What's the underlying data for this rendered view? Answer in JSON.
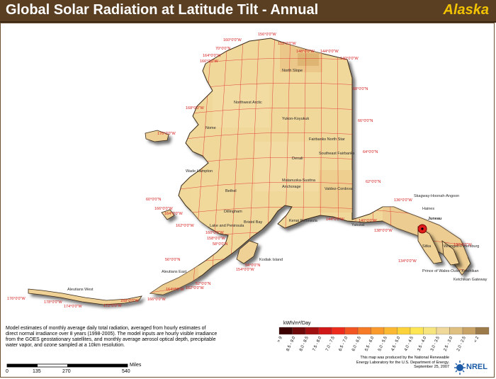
{
  "header": {
    "title": "Global Solar Radiation at Latitude Tilt - Annual",
    "region": "Alaska"
  },
  "colors": {
    "title_bg": "#5a3f22",
    "title_text": "#ffffff",
    "region_text": "#f2c300",
    "land_base": "#f0d79a",
    "grid": "#e02a2a",
    "water": "#ffffff"
  },
  "map": {
    "grid_labels": {
      "longitudes": [
        "156°0'0\"W",
        "152°0'0\"W",
        "148°0'0\"W",
        "144°0'0\"W",
        "140°0'0\"W",
        "160°0'0\"W",
        "164°0'0\"W",
        "166°0'0\"W",
        "168°0'0\"W",
        "170°0'0\"W",
        "166°0'0\"W",
        "164°0'0\"W",
        "162°0'0\"W",
        "160°0'0\"W",
        "158°0'0\"W",
        "154°0'0\"W",
        "144°0'0\"W",
        "140°0'0\"W",
        "138°0'0\"W",
        "136°0'0\"W",
        "134°0'0\"W",
        "132°0'0\"W",
        "176°0'0\"W",
        "178°0'0\"W",
        "174°0'0\"W",
        "172°0'0\"W",
        "168°0'0\"W",
        "166°0'0\"W",
        "164°0'0\"W",
        "162°0'0\"W"
      ],
      "latitudes": [
        "70°0'0\"N",
        "68°0'0\"N",
        "66°0'0\"N",
        "64°0'0\"N",
        "62°0'0\"N",
        "60°0'0\"N",
        "58°0'0\"N",
        "56°0'0\"N",
        "54°0'0\"N",
        "52°0'0\"N"
      ]
    },
    "places": [
      "North Slope",
      "Northwest Arctic",
      "Yukon-Koyukuk",
      "Nome",
      "Fairbanks North Star",
      "Southeast Fairbanks",
      "Denali",
      "Wade Hampton",
      "Bethel",
      "Matanuska-Susitna",
      "Anchorage",
      "Valdez-Cordova",
      "Dillingham",
      "Kenai Peninsula",
      "Lake and Peninsula",
      "Bristol Bay",
      "Kodiak Island",
      "Aleutians East",
      "Aleutians West",
      "Yakutat",
      "Skagway-Hoonah-Angoon",
      "Haines",
      "Juneau",
      "Wrangell-Petersburg",
      "Sitka",
      "Prince of Wales-Outer Ketchikan",
      "Ketchikan Gateway"
    ],
    "capital": "Juneau"
  },
  "legend": {
    "title": "kWh/m²/Day",
    "classes": [
      {
        "label": "> 9",
        "color": "#3d0000"
      },
      {
        "label": "8.5 - 9.0",
        "color": "#6e0a0a"
      },
      {
        "label": "8.0 - 8.5",
        "color": "#a01010"
      },
      {
        "label": "7.5 - 8.0",
        "color": "#d01818"
      },
      {
        "label": "7.0 - 7.5",
        "color": "#ee2c1e"
      },
      {
        "label": "6.5 - 7.0",
        "color": "#f35522"
      },
      {
        "label": "6.0 - 6.5",
        "color": "#f77a26"
      },
      {
        "label": "5.5 - 6.0",
        "color": "#fa9a2c"
      },
      {
        "label": "5.0 - 5.5",
        "color": "#fbb832"
      },
      {
        "label": "4.5 - 5.0",
        "color": "#fcd23a"
      },
      {
        "label": "4.0 - 4.5",
        "color": "#fde554"
      },
      {
        "label": "3.5 - 4.0",
        "color": "#f6e47f"
      },
      {
        "label": "3.0 - 3.5",
        "color": "#f0d79a"
      },
      {
        "label": "2.5 - 3.0",
        "color": "#e0c080"
      },
      {
        "label": "2.0 - 2.5",
        "color": "#c9a266"
      },
      {
        "label": "< 2",
        "color": "#9c7a4a"
      }
    ]
  },
  "scale_bar": {
    "ticks": [
      "0",
      "135",
      "270",
      "540"
    ],
    "unit": "Miles"
  },
  "description": "Model estimates of monthly average daily total radiation, averaged from hourly estimates of direct normal irradiance over 8 years (1998-2005). The model inputs are hourly visible irradiance from the GOES geostationary satellites, and monthly average aerosol optical depth, precipitable water vapor, and ozone sampled at a 10km resolution.",
  "credit": "This map was produced by the National Renewable Energy Laboratory for the U.S. Department of Energy. September 25, 2007",
  "logo": "NREL"
}
